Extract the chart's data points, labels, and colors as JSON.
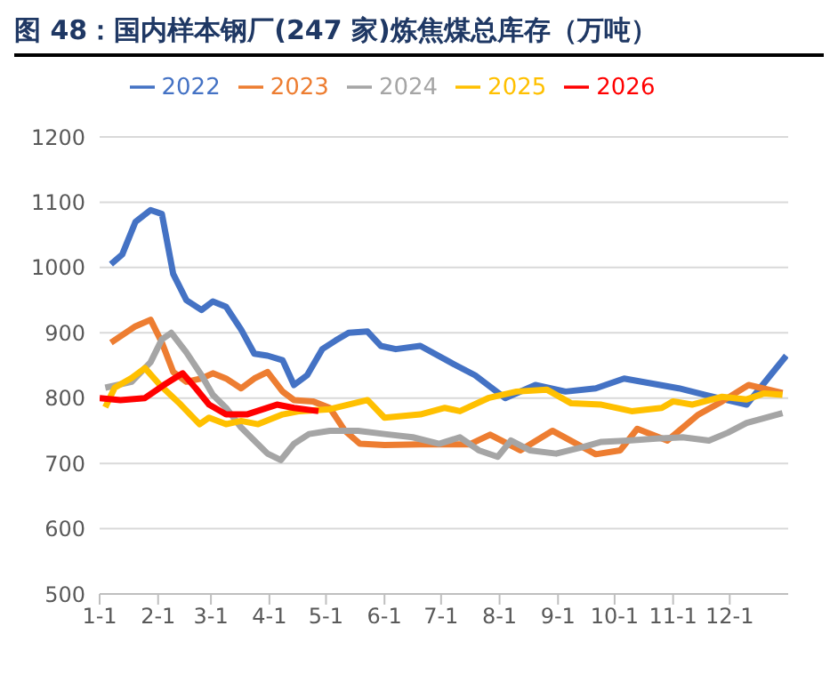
{
  "chart_data": {
    "type": "line",
    "title": "图 48：国内样本钢厂(247 家)炼焦煤总库存（万吨）",
    "xlim": [
      "--01-01",
      "--12-31"
    ],
    "xticks": [
      {
        "value": "--01-01",
        "label": "1-1"
      },
      {
        "value": "--02-01",
        "label": "2-1"
      },
      {
        "value": "--03-01",
        "label": "3-1"
      },
      {
        "value": "--04-01",
        "label": "4-1"
      },
      {
        "value": "--05-01",
        "label": "5-1"
      },
      {
        "value": "--06-01",
        "label": "6-1"
      },
      {
        "value": "--07-01",
        "label": "7-1"
      },
      {
        "value": "--08-01",
        "label": "8-1"
      },
      {
        "value": "--09-01",
        "label": "9-1"
      },
      {
        "value": "--10-01",
        "label": "10-1"
      },
      {
        "value": "--11-01",
        "label": "11-1"
      },
      {
        "value": "--12-01",
        "label": "12-1"
      }
    ],
    "ylim": [
      500,
      1200
    ],
    "yticks": [
      500,
      600,
      700,
      800,
      900,
      1000,
      1100,
      1200
    ],
    "grid": "y",
    "legend": "top",
    "marker": "none",
    "line_style": "solid",
    "series": [
      {
        "name": "2022",
        "color": "#4472c4",
        "x": [
          "--01-07",
          "--01-13",
          "--01-20",
          "--01-28",
          "--02-03",
          "--02-09",
          "--02-16",
          "--02-24",
          "--03-02",
          "--03-09",
          "--03-17",
          "--03-24",
          "--03-31",
          "--04-08",
          "--04-14",
          "--04-21",
          "--04-29",
          "--05-06",
          "--05-13",
          "--05-23",
          "--05-30",
          "--06-07",
          "--06-20",
          "--07-09",
          "--07-19",
          "--08-04",
          "--08-20",
          "--09-05",
          "--09-21",
          "--10-06",
          "--11-04",
          "--11-18",
          "--12-10",
          "--12-31"
        ],
        "values": [
          1005,
          1020,
          1070,
          1088,
          1082,
          990,
          950,
          935,
          948,
          940,
          905,
          868,
          865,
          858,
          820,
          835,
          875,
          888,
          900,
          902,
          880,
          875,
          880,
          850,
          835,
          800,
          820,
          810,
          815,
          830,
          815,
          805,
          790,
          865
        ]
      },
      {
        "name": "2023",
        "color": "#ed7d31",
        "x": [
          "--01-07",
          "--01-20",
          "--01-28",
          "--02-03",
          "--02-09",
          "--02-16",
          "--02-24",
          "--03-02",
          "--03-09",
          "--03-17",
          "--03-24",
          "--03-31",
          "--04-08",
          "--04-14",
          "--04-24",
          "--05-03",
          "--05-11",
          "--05-19",
          "--06-01",
          "--06-20",
          "--07-16",
          "--07-27",
          "--08-12",
          "--08-29",
          "--09-21",
          "--10-04",
          "--10-13",
          "--10-29",
          "--11-14",
          "--11-27",
          "--12-11",
          "--12-29"
        ],
        "values": [
          885,
          910,
          920,
          885,
          840,
          825,
          830,
          838,
          830,
          815,
          830,
          840,
          810,
          797,
          795,
          785,
          750,
          730,
          728,
          729,
          729,
          744,
          720,
          750,
          714,
          720,
          753,
          735,
          774,
          795,
          820,
          808
        ]
      },
      {
        "name": "2024",
        "color": "#a5a5a5",
        "x": [
          "--01-04",
          "--01-18",
          "--01-28",
          "--02-03",
          "--02-08",
          "--02-16",
          "--02-24",
          "--03-02",
          "--03-09",
          "--03-17",
          "--03-24",
          "--03-31",
          "--04-07",
          "--04-14",
          "--04-22",
          "--05-03",
          "--05-18",
          "--06-01",
          "--06-16",
          "--06-30",
          "--07-11",
          "--07-21",
          "--07-31",
          "--08-07",
          "--08-17",
          "--08-31",
          "--09-14",
          "--09-24",
          "--10-08",
          "--10-23",
          "--11-06",
          "--11-20",
          "--11-30",
          "--12-10",
          "--12-29"
        ],
        "values": [
          816,
          825,
          855,
          890,
          900,
          870,
          835,
          805,
          785,
          755,
          735,
          715,
          705,
          730,
          745,
          750,
          750,
          745,
          740,
          730,
          740,
          720,
          710,
          735,
          720,
          715,
          725,
          733,
          735,
          738,
          740,
          735,
          747,
          762,
          777
        ]
      },
      {
        "name": "2025",
        "color": "#ffc000",
        "x": [
          "--01-04",
          "--01-09",
          "--01-18",
          "--01-25",
          "--02-02",
          "--02-13",
          "--02-23",
          "--02-28",
          "--03-09",
          "--03-17",
          "--03-26",
          "--04-08",
          "--04-17",
          "--05-03",
          "--05-23",
          "--06-01",
          "--06-20",
          "--07-03",
          "--07-11",
          "--07-26",
          "--08-10",
          "--08-26",
          "--09-08",
          "--09-24",
          "--10-10",
          "--10-26",
          "--11-01",
          "--11-11",
          "--11-27",
          "--12-10",
          "--12-19",
          "--12-29"
        ],
        "values": [
          786,
          816,
          831,
          846,
          820,
          790,
          760,
          770,
          760,
          765,
          760,
          775,
          780,
          783,
          797,
          770,
          775,
          785,
          780,
          800,
          810,
          813,
          792,
          790,
          780,
          785,
          795,
          790,
          802,
          798,
          807,
          805
        ]
      },
      {
        "name": "2026",
        "color": "#ff0000",
        "x": [
          "--01-01",
          "--01-12",
          "--01-25",
          "--02-04",
          "--02-14",
          "--02-21",
          "--02-28",
          "--03-09",
          "--03-20",
          "--04-05",
          "--04-14",
          "--04-27"
        ],
        "values": [
          800,
          797,
          800,
          820,
          838,
          815,
          790,
          775,
          775,
          790,
          785,
          780
        ]
      }
    ]
  }
}
